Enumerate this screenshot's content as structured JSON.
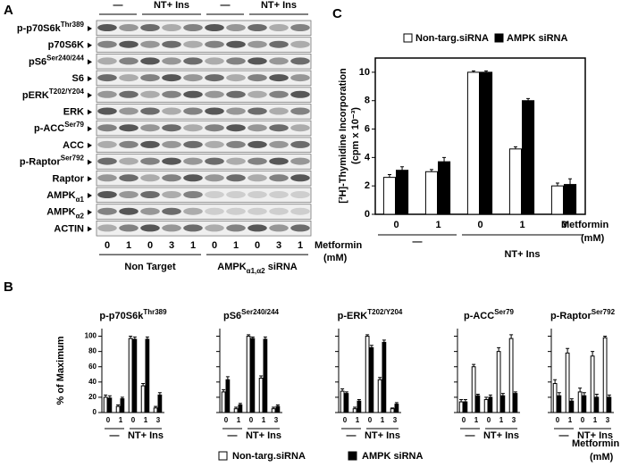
{
  "panel_labels": [
    "A",
    "B",
    "C"
  ],
  "panel_a": {
    "rows": [
      {
        "name": "p-p70S6k",
        "sup": "Thr389"
      },
      {
        "name": "p70S6K"
      },
      {
        "name": "pS6",
        "sup": "Ser240/244"
      },
      {
        "name": "S6"
      },
      {
        "name": "pERK",
        "sup": "T202/Y204"
      },
      {
        "name": "ERK"
      },
      {
        "name": "p-ACC",
        "sup": "Ser79"
      },
      {
        "name": "ACC"
      },
      {
        "name": "p-Raptor",
        "sup": "Ser792"
      },
      {
        "name": "Raptor"
      },
      {
        "name": "AMPK",
        "sub": "α1"
      },
      {
        "name": "AMPK",
        "sub": "α2"
      },
      {
        "name": "ACTIN"
      }
    ],
    "lanes": [
      "0",
      "1",
      "0",
      "3",
      "1",
      "0",
      "1",
      "0",
      "3",
      "1"
    ],
    "treatments": [
      "—",
      "NT+ Ins",
      "—",
      "NT+ Ins"
    ],
    "groups": [
      {
        "name": "Non Target"
      },
      {
        "name": "AMPK",
        "sub": "α1,α2",
        "suffix": " siRNA"
      }
    ],
    "x_label": "Metformin",
    "x_unit": "(mM)"
  },
  "panel_b": {
    "y_label": "% of Maximum",
    "x_label": "Metformin",
    "x_unit": "(mM)"
  },
  "chart_data": [
    {
      "type": "bar",
      "title": "p-p70S6k",
      "title_sup": "Thr389",
      "categories": [
        "0",
        "1",
        "0",
        "1",
        "3"
      ],
      "groups": [
        "—",
        "NT+ Ins"
      ],
      "series": [
        {
          "name": "Non-targ.siRNA",
          "color": "#ffffff",
          "values": [
            20,
            8,
            97,
            35,
            6
          ],
          "errors": [
            3,
            2,
            3,
            3,
            2
          ]
        },
        {
          "name": "AMPK siRNA",
          "color": "#000000",
          "values": [
            19,
            18,
            96,
            96,
            23
          ],
          "errors": [
            3,
            2,
            3,
            3,
            3
          ]
        }
      ],
      "ylim": [
        0,
        110
      ],
      "yticks": [
        0,
        20,
        40,
        60,
        80,
        100
      ]
    },
    {
      "type": "bar",
      "title": "pS6",
      "title_sup": "Ser240/244",
      "categories": [
        "0",
        "1",
        "0",
        "1",
        "3"
      ],
      "groups": [
        "—",
        "NT+ Ins"
      ],
      "series": [
        {
          "color": "#ffffff",
          "values": [
            27,
            5,
            100,
            45,
            5
          ],
          "errors": [
            3,
            2,
            2,
            3,
            2
          ]
        },
        {
          "color": "#000000",
          "values": [
            43,
            10,
            97,
            96,
            8
          ],
          "errors": [
            4,
            2,
            2,
            3,
            2
          ]
        }
      ],
      "ylim": [
        0,
        110
      ],
      "yticks": [
        0,
        20,
        40,
        60,
        80,
        100
      ]
    },
    {
      "type": "bar",
      "title": "p-ERK",
      "title_sup": "T202/Y204",
      "categories": [
        "0",
        "1",
        "0",
        "1",
        "3"
      ],
      "groups": [
        "—",
        "NT+ Ins"
      ],
      "series": [
        {
          "color": "#ffffff",
          "values": [
            28,
            5,
            100,
            43,
            5
          ],
          "errors": [
            3,
            2,
            2,
            3,
            1
          ]
        },
        {
          "color": "#000000",
          "values": [
            25,
            15,
            85,
            92,
            11
          ],
          "errors": [
            2,
            2,
            3,
            3,
            2
          ]
        }
      ],
      "ylim": [
        0,
        110
      ],
      "yticks": [
        0,
        20,
        40,
        60,
        80,
        100
      ]
    },
    {
      "type": "bar",
      "title": "p-ACC",
      "title_sup": "Ser79",
      "categories": [
        "0",
        "1",
        "0",
        "1",
        "3"
      ],
      "groups": [
        "—",
        "NT+ Ins"
      ],
      "series": [
        {
          "color": "#ffffff",
          "values": [
            14,
            60,
            17,
            80,
            97
          ],
          "errors": [
            3,
            3,
            3,
            5,
            5
          ]
        },
        {
          "color": "#000000",
          "values": [
            14,
            22,
            20,
            22,
            25
          ],
          "errors": [
            3,
            2,
            3,
            3,
            2
          ]
        }
      ],
      "ylim": [
        0,
        110
      ],
      "yticks": [
        0,
        20,
        40,
        60,
        80,
        100
      ]
    },
    {
      "type": "bar",
      "title": "p-Raptor",
      "title_sup": "Ser792",
      "categories": [
        "0",
        "1",
        "0",
        "1",
        "3"
      ],
      "groups": [
        "—",
        "NT+ Ins"
      ],
      "series": [
        {
          "color": "#ffffff",
          "values": [
            38,
            78,
            27,
            74,
            98
          ],
          "errors": [
            5,
            6,
            5,
            6,
            2
          ]
        },
        {
          "color": "#000000",
          "values": [
            22,
            15,
            22,
            20,
            20
          ],
          "errors": [
            4,
            3,
            4,
            4,
            3
          ]
        }
      ],
      "ylim": [
        0,
        110
      ],
      "yticks": [
        0,
        20,
        40,
        60,
        80,
        100
      ]
    },
    {
      "type": "bar",
      "y_label": "[³H]-Thymidine Incorporation",
      "y_unit": "(cpm x 10⁻³)",
      "categories": [
        "0",
        "1",
        "0",
        "1",
        "3"
      ],
      "groups": [
        "—",
        "NT+ Ins"
      ],
      "x_label": "Metformin",
      "x_unit": "(mM)",
      "series": [
        {
          "name": "Non-targ.siRNA",
          "color": "#ffffff",
          "values": [
            2.6,
            3.0,
            10,
            4.6,
            2.0
          ],
          "errors": [
            0.2,
            0.15,
            0.1,
            0.15,
            0.2
          ]
        },
        {
          "name": "AMPK siRNA",
          "color": "#000000",
          "values": [
            3.1,
            3.7,
            10,
            8.0,
            2.1
          ],
          "errors": [
            0.25,
            0.3,
            0.1,
            0.15,
            0.4
          ]
        }
      ],
      "ylim": [
        0,
        11
      ],
      "yticks": [
        0,
        2,
        4,
        6,
        8,
        10
      ]
    }
  ]
}
